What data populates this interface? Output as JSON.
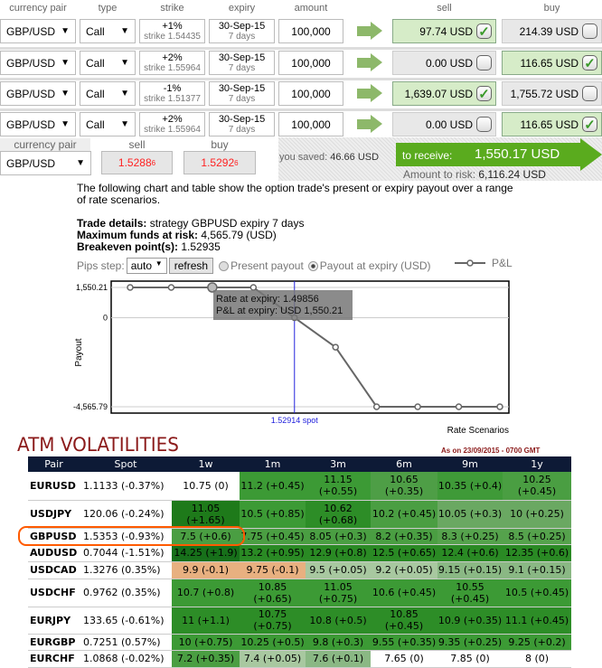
{
  "header": {
    "currency_pair": "currency pair",
    "type": "type",
    "strike": "strike",
    "expiry": "expiry",
    "amount": "amount",
    "sell": "sell",
    "buy": "buy"
  },
  "legs": [
    {
      "pair": "GBP/USD",
      "type": "Call",
      "strike_pct": "+1%",
      "strike": "strike 1.54435",
      "expiry_date": "30-Sep-15",
      "expiry_days": "7 days",
      "amount": "100,000",
      "sell": "97.74 USD",
      "sell_checked": true,
      "buy": "214.39 USD",
      "buy_checked": false
    },
    {
      "pair": "GBP/USD",
      "type": "Call",
      "strike_pct": "+2%",
      "strike": "strike 1.55964",
      "expiry_date": "30-Sep-15",
      "expiry_days": "7 days",
      "amount": "100,000",
      "sell": "0.00 USD",
      "sell_checked": false,
      "buy": "116.65 USD",
      "buy_checked": true
    },
    {
      "pair": "GBP/USD",
      "type": "Call",
      "strike_pct": "-1%",
      "strike": "strike 1.51377",
      "expiry_date": "30-Sep-15",
      "expiry_days": "7 days",
      "amount": "100,000",
      "sell": "1,639.07 USD",
      "sell_checked": true,
      "buy": "1,755.72 USD",
      "buy_checked": false
    },
    {
      "pair": "GBP/USD",
      "type": "Call",
      "strike_pct": "+2%",
      "strike": "strike 1.55964",
      "expiry_date": "30-Sep-15",
      "expiry_days": "7 days",
      "amount": "100,000",
      "sell": "0.00 USD",
      "sell_checked": false,
      "buy": "116.65 USD",
      "buy_checked": true
    }
  ],
  "quote": {
    "pair_label": "currency pair",
    "sell_label": "sell",
    "buy_label": "buy",
    "pair": "GBP/USD",
    "sell_main": "1.5288",
    "sell_pip": "6",
    "buy_main": "1.5292",
    "buy_pip": "6"
  },
  "summary": {
    "saved_label": "you saved:",
    "saved": "46.66 USD",
    "receive_label": "to receive:",
    "receive": "1,550.17 USD",
    "risk_label": "Amount to risk:",
    "risk": "6,116.24 USD"
  },
  "intro": "The following chart and table show the option trade's present or expiry payout over a range of rate scenarios.",
  "details": {
    "trade_label": "Trade details:",
    "trade": " strategy GBPUSD expiry 7 days",
    "max_label": "Maximum funds at risk:",
    "max": " 4,565.79 (USD)",
    "be_label": "Breakeven point(s):",
    "be": " 1.52935"
  },
  "controls": {
    "pips_label": "Pips step:",
    "pips_value": "auto",
    "refresh": "refresh",
    "present": "Present payout",
    "expiry": "Payout at expiry (USD)",
    "selected": "expiry"
  },
  "chart_data": {
    "type": "line",
    "series": [
      {
        "name": "P&L",
        "values": [
          1550.21,
          1550.21,
          1550.21,
          1550.21,
          0,
          -1511,
          -4565.79,
          -4565.79,
          -4565.79,
          -4565.79
        ]
      }
    ],
    "ylabel": "Payout",
    "xlabel": "Rate Scenarios",
    "yticks": [
      "1,550.21",
      "0",
      "-4,565.79"
    ],
    "ylim": [
      -4565.79,
      1550.21
    ],
    "spot_label": "1.52914 spot",
    "spot_index": 4,
    "highlight_index": 2,
    "tooltip": {
      "line1": "Rate at expiry: 1.49856",
      "line2": "P&L at expiry: USD 1,550.21"
    },
    "line_color": "#666666",
    "spot_color": "#2222dd"
  },
  "vol": {
    "title": "ATM VOLATILITIES",
    "asof": "As on 23/09/2015 - 0700 GMT",
    "highlight_color": "#ff5a00",
    "headers": [
      "Pair",
      "Spot",
      "1w",
      "1m",
      "3m",
      "6m",
      "9m",
      "1y"
    ],
    "rows": [
      {
        "pair": "EURUSD",
        "spot": "1.1133 (-0.37%)",
        "cells": [
          "10.75 (0)",
          "11.2 (+0.45)",
          "11.15 (+0.55)",
          "10.65 (+0.35)",
          "10.35 (+0.4)",
          "10.25 (+0.45)"
        ],
        "colors": [
          "#ffffff",
          "#3c9a35",
          "#3c9a35",
          "#4e9e46",
          "#3f9a38",
          "#4a9e42"
        ]
      },
      {
        "pair": "USDJPY",
        "spot": "120.06 (-0.24%)",
        "cells": [
          "11.05 (+1.65)",
          "10.5 (+0.85)",
          "10.62 (+0.68)",
          "10.2 (+0.45)",
          "10.05 (+0.3)",
          "10 (+0.25)"
        ],
        "colors": [
          "#1e7a1a",
          "#3c9a35",
          "#2d8d27",
          "#4a9e42",
          "#6aa862",
          "#6aa862"
        ]
      },
      {
        "pair": "GBPUSD",
        "spot": "1.5353 (-0.93%)",
        "cells": [
          "7.5 (+0.6)",
          "7.75 (+0.45)",
          "8.05 (+0.3)",
          "8.2 (+0.35)",
          "8.3 (+0.25)",
          "8.5 (+0.25)"
        ],
        "colors": [
          "#4a9e42",
          "#4a9e42",
          "#4a9e42",
          "#4a9e42",
          "#55a24c",
          "#55a24c"
        ]
      },
      {
        "pair": "AUDUSD",
        "spot": "0.7044 (-1.51%)",
        "cells": [
          "14.25 (+1.9)",
          "13.2 (+0.95)",
          "12.9 (+0.8)",
          "12.5 (+0.65)",
          "12.4 (+0.6)",
          "12.35 (+0.6)"
        ],
        "colors": [
          "#17701a",
          "#2a8a24",
          "#2a8a24",
          "#2a8a24",
          "#2a8a24",
          "#2a8a24"
        ]
      },
      {
        "pair": "USDCAD",
        "spot": "1.3276 (0.35%)",
        "cells": [
          "9.9 (-0.1)",
          "9.75 (-0.1)",
          "9.5 (+0.05)",
          "9.2 (+0.05)",
          "9.15 (+0.15)",
          "9.1 (+0.15)"
        ],
        "colors": [
          "#e8b080",
          "#e8b080",
          "#a8c8a0",
          "#a8c8a0",
          "#8ab884",
          "#8ab884"
        ]
      },
      {
        "pair": "USDCHF",
        "spot": "0.9762 (0.35%)",
        "cells": [
          "10.7 (+0.8)",
          "10.85 (+0.65)",
          "11.05 (+0.75)",
          "10.6 (+0.45)",
          "10.55 (+0.45)",
          "10.5 (+0.45)"
        ],
        "colors": [
          "#3c9a35",
          "#3c9a35",
          "#3c9a35",
          "#3c9a35",
          "#3c9a35",
          "#3c9a35"
        ]
      },
      {
        "pair": "EURJPY",
        "spot": "133.65 (-0.61%)",
        "cells": [
          "11 (+1.1)",
          "10.75 (+0.75)",
          "10.8 (+0.5)",
          "10.85 (+0.45)",
          "10.9 (+0.35)",
          "11.1 (+0.45)"
        ],
        "colors": [
          "#2d8d27",
          "#2d8d27",
          "#2d8d27",
          "#2d8d27",
          "#2d8d27",
          "#2d8d27"
        ]
      },
      {
        "pair": "EURGBP",
        "spot": "0.7251 (0.57%)",
        "cells": [
          "10 (+0.75)",
          "10.25 (+0.5)",
          "9.8 (+0.3)",
          "9.55 (+0.35)",
          "9.35 (+0.25)",
          "9.25 (+0.2)"
        ],
        "colors": [
          "#3c9a35",
          "#3c9a35",
          "#3c9a35",
          "#3c9a35",
          "#3c9a35",
          "#3c9a35"
        ]
      },
      {
        "pair": "EURCHF",
        "spot": "1.0868 (-0.02%)",
        "cells": [
          "7.2 (+0.35)",
          "7.4 (+0.05)",
          "7.6 (+0.1)",
          "7.65 (0)",
          "7.85 (0)",
          "8 (0)"
        ],
        "colors": [
          "#4a9e42",
          "#a8c8a0",
          "#8ab884",
          "#ffffff",
          "#ffffff",
          "#ffffff"
        ]
      }
    ]
  }
}
